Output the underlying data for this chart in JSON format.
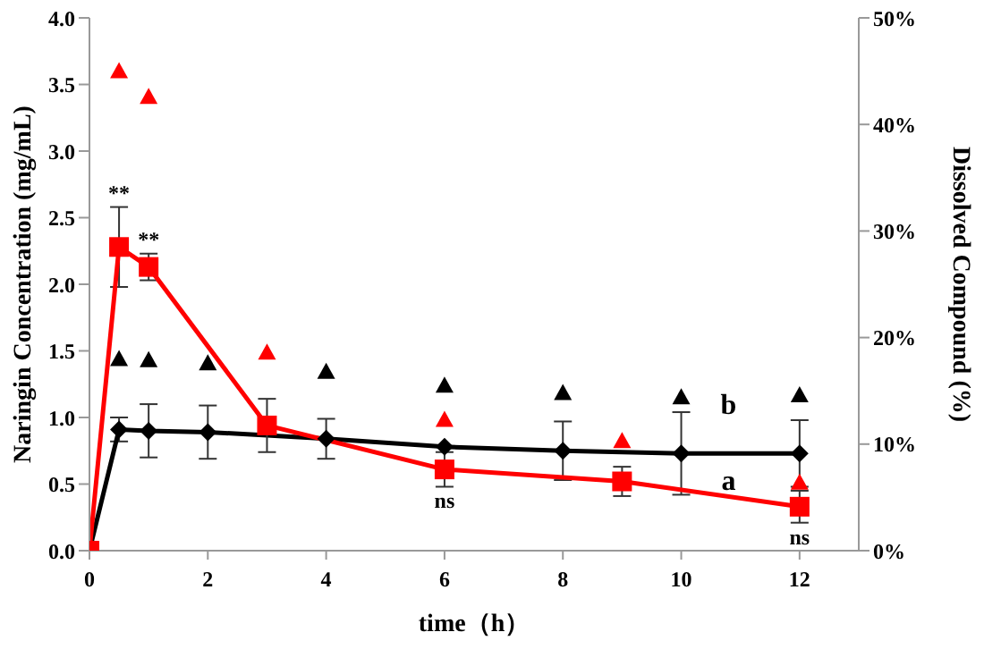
{
  "chart_data": {
    "type": "line",
    "xlabel": "time（h）",
    "ylabel": "Naringin Concentration (mg/mL)",
    "y2label": "Dissolved Compound (%)",
    "xlim": [
      0,
      13
    ],
    "xticks": [
      0,
      2,
      4,
      6,
      8,
      10,
      12
    ],
    "ylim": [
      0,
      4
    ],
    "yticks": [
      {
        "value": 0,
        "label": "0.0"
      },
      {
        "value": 0.5,
        "label": "0.5"
      },
      {
        "value": 1,
        "label": "1.0"
      },
      {
        "value": 1.5,
        "label": "1.5"
      },
      {
        "value": 2,
        "label": "2.0"
      },
      {
        "value": 2.5,
        "label": "2.5"
      },
      {
        "value": 3,
        "label": "3.0"
      },
      {
        "value": 3.5,
        "label": "3.5"
      },
      {
        "value": 4,
        "label": "4.0"
      }
    ],
    "y2lim": [
      0,
      50
    ],
    "y2ticks": [
      {
        "value": 0,
        "label": "0%"
      },
      {
        "value": 10,
        "label": "10%"
      },
      {
        "value": 20,
        "label": "20%"
      },
      {
        "value": 30,
        "label": "30%"
      },
      {
        "value": 40,
        "label": "40%"
      },
      {
        "value": 50,
        "label": "50%"
      }
    ],
    "grid": false,
    "legend": false,
    "series": [
      {
        "name": "b",
        "color": "#000000",
        "marker": "diamond",
        "x": [
          0,
          0.5,
          1,
          2,
          4,
          6,
          8,
          10,
          12
        ],
        "values": [
          0,
          0.91,
          0.9,
          0.89,
          0.84,
          0.78,
          0.75,
          0.73,
          0.73
        ],
        "errors": [
          null,
          0.09,
          0.2,
          0.2,
          0.15,
          null,
          0.22,
          0.31,
          0.25
        ]
      },
      {
        "name": "a",
        "color": "#ff0000",
        "marker": "square",
        "x": [
          0,
          0.5,
          1,
          3,
          6,
          9,
          12
        ],
        "values": [
          0,
          2.28,
          2.13,
          0.94,
          0.61,
          0.52,
          0.33
        ],
        "errors": [
          null,
          0.3,
          0.1,
          0.2,
          0.13,
          0.11,
          0.12
        ]
      },
      {
        "type": "scatter",
        "axis": "y2",
        "color": "#000000",
        "marker": "triangle",
        "x": [
          0.5,
          1,
          2,
          4,
          6,
          8,
          10,
          12
        ],
        "values": [
          18,
          17.9,
          17.6,
          16.8,
          15.5,
          14.8,
          14.4,
          14.6
        ]
      },
      {
        "type": "scatter",
        "axis": "y2",
        "color": "#ff0000",
        "marker": "triangle",
        "x": [
          0.5,
          1,
          3,
          6,
          9,
          12
        ],
        "values": [
          45,
          42.6,
          18.6,
          12.3,
          10.3,
          6.4
        ]
      }
    ],
    "annotations": [
      {
        "text": "**",
        "x": 0.5,
        "y": 2.58
      },
      {
        "text": "**",
        "x": 1,
        "y": 2.23
      },
      {
        "text": "ns",
        "x": 6,
        "y": 0.48
      },
      {
        "text": "ns",
        "x": 12,
        "y": 0.21
      }
    ]
  }
}
